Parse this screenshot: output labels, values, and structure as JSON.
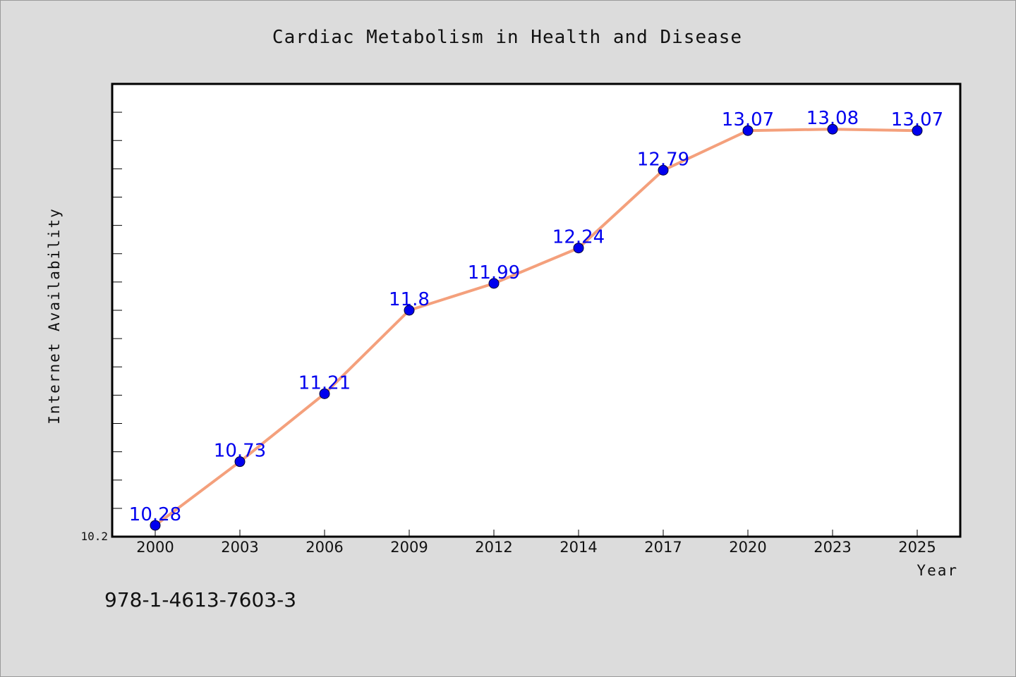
{
  "chart_data": {
    "type": "line",
    "title": "Cardiac Metabolism in Health and Disease",
    "xlabel": "Year",
    "ylabel": "Internet Availability",
    "categories": [
      "2000",
      "2003",
      "2006",
      "2009",
      "2012",
      "2014",
      "2017",
      "2020",
      "2023",
      "2025"
    ],
    "series": [
      {
        "values": [
          10.28,
          10.73,
          11.21,
          11.8,
          11.99,
          12.24,
          12.79,
          13.07,
          13.08,
          13.07
        ],
        "labels": [
          "10.28",
          "10.73",
          "11.21",
          "11.8",
          "11.99",
          "12.24",
          "12.79",
          "13.07",
          "13.08",
          "13.07"
        ]
      }
    ],
    "ylim": [
      10.2,
      13.4
    ],
    "ytick_labels": [
      "10.2"
    ],
    "grid": false,
    "legend": "none",
    "colors": {
      "line": "#f4a07c",
      "marker": "#0000ee",
      "data_label": "#0000ee",
      "plot_background": "#ffffff",
      "figure_background": "#dcdcdc"
    }
  },
  "footer": {
    "isbn": "978-1-4613-7603-3"
  }
}
